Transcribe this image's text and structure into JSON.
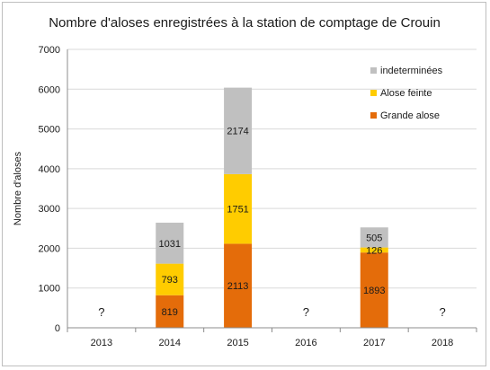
{
  "chart_data": {
    "type": "bar",
    "stacked": true,
    "title": "Nombre d'aloses enregistrées à la station de comptage de Crouin",
    "xlabel": "",
    "ylabel": "Nombre d'aloses",
    "ylim": [
      0,
      7000
    ],
    "yticks": [
      "0",
      "1000",
      "2000",
      "3000",
      "4000",
      "5000",
      "6000",
      "7000"
    ],
    "categories": [
      "2013",
      "2014",
      "2015",
      "2016",
      "2017",
      "2018"
    ],
    "grid": true,
    "legend_position": "top-right",
    "series": [
      {
        "name": "Grande alose",
        "color": "#e46c0a",
        "values": [
          null,
          819,
          2113,
          null,
          1893,
          null
        ]
      },
      {
        "name": "Alose feinte",
        "color": "#ffcc00",
        "values": [
          null,
          793,
          1751,
          null,
          126,
          null
        ]
      },
      {
        "name": "indeterminées",
        "color": "#c0c0c0",
        "values": [
          null,
          1031,
          2174,
          null,
          505,
          null
        ]
      }
    ],
    "annotations": [
      {
        "category": "2013",
        "text": "?"
      },
      {
        "category": "2016",
        "text": "?"
      },
      {
        "category": "2018",
        "text": "?"
      }
    ]
  }
}
